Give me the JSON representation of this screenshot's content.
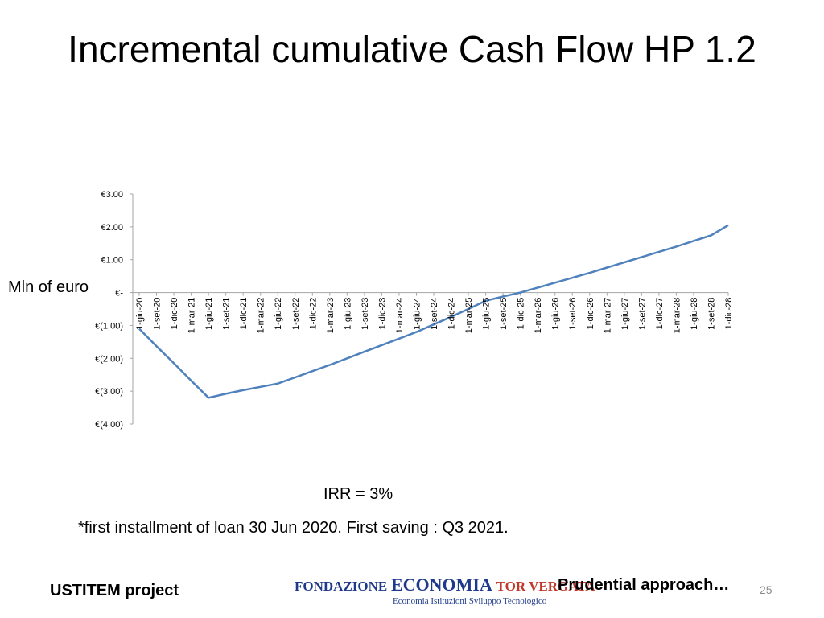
{
  "slide": {
    "title": "Incremental cumulative Cash Flow HP 1.2",
    "irr": "IRR = 3%",
    "footnote": "*first installment of loan 30 Jun 2020. First saving : Q3 2021.",
    "project": "USTITEM project",
    "approach": "Prudential approach…",
    "page_number": "25",
    "logo": {
      "part1": "FONDAZIONE",
      "part2": "ECONOMIA",
      "part3": "TOR VERGATA",
      "tagline": "Economia  Istituzioni  Sviluppo Tecnologico"
    }
  },
  "chart_data": {
    "type": "line",
    "title": "",
    "ylabel": "Mln of euro",
    "xlabel": "",
    "ylim": [
      -4,
      3
    ],
    "yticks": [
      3,
      2,
      1,
      0,
      -1,
      -2,
      -3,
      -4
    ],
    "ytick_labels": [
      "€3.00",
      "€2.00",
      "€1.00",
      "€-",
      "€(1.00)",
      "€(2.00)",
      "€(3.00)",
      "€(4.00)"
    ],
    "categories": [
      "1-giu-20",
      "1-set-20",
      "1-dic-20",
      "1-mar-21",
      "1-giu-21",
      "1-set-21",
      "1-dic-21",
      "1-mar-22",
      "1-giu-22",
      "1-set-22",
      "1-dic-22",
      "1-mar-23",
      "1-giu-23",
      "1-set-23",
      "1-dic-23",
      "1-mar-24",
      "1-giu-24",
      "1-set-24",
      "1-dic-24",
      "1-mar-25",
      "1-giu-25",
      "1-set-25",
      "1-dic-25",
      "1-mar-26",
      "1-giu-26",
      "1-set-26",
      "1-dic-26",
      "1-mar-27",
      "1-giu-27",
      "1-set-27",
      "1-dic-27",
      "1-mar-28",
      "1-giu-28",
      "1-set-28",
      "1-dic-28"
    ],
    "series": [
      {
        "name": "Incremental cumulative cash flow",
        "color": "#4f81bd",
        "values": [
          -1.1,
          -1.63,
          -2.15,
          -2.68,
          -3.2,
          -3.08,
          -2.97,
          -2.87,
          -2.77,
          -2.58,
          -2.39,
          -2.2,
          -2.0,
          -1.8,
          -1.6,
          -1.4,
          -1.2,
          -0.97,
          -0.74,
          -0.5,
          -0.25,
          -0.12,
          0.0,
          0.15,
          0.3,
          0.45,
          0.6,
          0.76,
          0.92,
          1.08,
          1.24,
          1.4,
          1.57,
          1.74,
          2.05
        ]
      }
    ]
  }
}
